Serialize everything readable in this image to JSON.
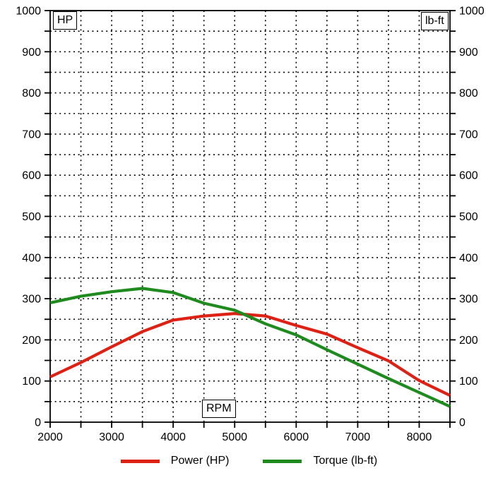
{
  "chart_data": {
    "type": "line",
    "title": "",
    "xlabel": "RPM",
    "ylabel_left": "HP",
    "ylabel_right": "lb-ft",
    "xlim": [
      2000,
      8500
    ],
    "ylim": [
      0,
      1000
    ],
    "x_major_step": 1000,
    "x_minor_step": 500,
    "y_major_step": 100,
    "y_minor_step": 50,
    "grid": "dotted",
    "legend_position": "bottom",
    "x": [
      2000,
      2500,
      3000,
      3500,
      4000,
      4500,
      5000,
      5500,
      6000,
      6500,
      7000,
      7500,
      8000,
      8500
    ],
    "series": [
      {
        "name": "Power (HP)",
        "color": "#dd2115",
        "values": [
          110,
          145,
          183,
          220,
          248,
          258,
          264,
          258,
          235,
          214,
          181,
          149,
          101,
          65
        ]
      },
      {
        "name": "Torque (lb-ft)",
        "color": "#1f8b1f",
        "values": [
          290,
          306,
          317,
          325,
          315,
          289,
          272,
          239,
          212,
          176,
          141,
          106,
          72,
          38
        ]
      }
    ]
  },
  "style": {
    "grid_color": "#000000",
    "axis_color": "#000000",
    "background": "#ffffff"
  }
}
